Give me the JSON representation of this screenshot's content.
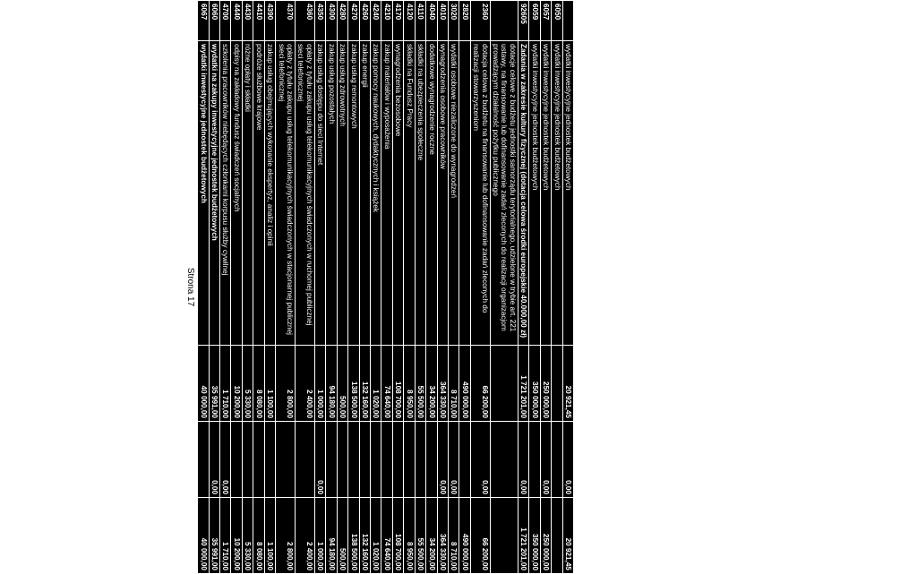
{
  "page_label": "Strona 17",
  "rows": [
    {
      "code": "",
      "desc": "wydatki inwestycyjne jednostek budżetowych",
      "c1": "20 921,45",
      "c2": "0,00",
      "c3": "20 921,45"
    },
    {
      "code": "6050",
      "desc": "wydatki inwestycyjne jednostek budżetowych",
      "c1": "",
      "c2": "",
      "c3": ""
    },
    {
      "code": "6057",
      "desc": "wydatki inwestycyjne jednostek budżetowych",
      "c1": "250 000,00",
      "c2": "0,00",
      "c3": "250 000,00"
    },
    {
      "code": "6059",
      "desc": "wydatki inwestycyjne jednostek budżetowych",
      "c1": "350 000,00",
      "c2": "",
      "c3": "350 000,00"
    },
    {
      "code": "92605",
      "desc": "Zadania w zakresie kultury fizycznej (dotacja celowa środki europejskie 40.000,00 zł)",
      "c1": "1 721 201,00",
      "c2": "0,00",
      "c3": "1 721 201,00",
      "bold": true
    },
    {
      "code": "",
      "desc": "dotacje celowe z budżetu jednostki samorządu terytorialnego, udzielone w trybie art. 221 ustawy, na finansowanie lub dofinansowanie zadań zleconych do realizacji organizacjom prowadzącym działalność pożytku publicznego",
      "c1": "",
      "c2": "",
      "c3": ""
    },
    {
      "code": "2360",
      "desc": "dotacja celowa z budżetu na finansowanie lub dofinansowanie zadań zleconych do realizacji stowarzyszeniom",
      "c1": "66 200,00",
      "c2": "0,00",
      "c3": "66 200,00"
    },
    {
      "code": "2820",
      "desc": "",
      "c1": "490 000,00",
      "c2": "",
      "c3": "490 000,00"
    },
    {
      "code": "3020",
      "desc": "wydatki osobowe niezaliczone do wynagrodzeń",
      "c1": "8 710,00",
      "c2": "0,00",
      "c3": "8 710,00"
    },
    {
      "code": "4010",
      "desc": "wynagrodzenia osobowe pracowników",
      "c1": "364 330,00",
      "c2": "0,00",
      "c3": "364 330,00"
    },
    {
      "code": "4040",
      "desc": "dodatkowe wynagrodzenie roczne",
      "c1": "34 200,00",
      "c2": "",
      "c3": "34 200,00"
    },
    {
      "code": "4110",
      "desc": "składki na ubezpieczenia społeczne",
      "c1": "55 500,00",
      "c2": "",
      "c3": "55 500,00"
    },
    {
      "code": "4120",
      "desc": "składki na Fundusz Pracy",
      "c1": "8 950,00",
      "c2": "",
      "c3": "8 950,00"
    },
    {
      "code": "4170",
      "desc": "wynagrodzenia bezosobowe",
      "c1": "108 700,00",
      "c2": "",
      "c3": "108 700,00"
    },
    {
      "code": "4210",
      "desc": "zakup materiałów i wyposażenia",
      "c1": "74 640,00",
      "c2": "",
      "c3": "74 640,00"
    },
    {
      "code": "4240",
      "desc": "zakup pomocy naukowych, dydaktycznych i książek",
      "c1": "1 020,00",
      "c2": "",
      "c3": "1 020,00"
    },
    {
      "code": "4260",
      "desc": "zakup energii",
      "c1": "132 160,00",
      "c2": "",
      "c3": "132 160,00"
    },
    {
      "code": "4270",
      "desc": "zakup usług remontowych",
      "c1": "138 500,00",
      "c2": "",
      "c3": "138 500,00"
    },
    {
      "code": "4280",
      "desc": "zakup usług zdrowotnych",
      "c1": "500,00",
      "c2": "",
      "c3": "500,00"
    },
    {
      "code": "4300",
      "desc": "zakup usług pozostałych",
      "c1": "94 180,00",
      "c2": "",
      "c3": "94 180,00"
    },
    {
      "code": "4350",
      "desc": "zakup usług dostępu do sieci Internet",
      "c1": "1 000,00",
      "c2": "0,00",
      "c3": "1 000,00"
    },
    {
      "code": "4360",
      "desc": "opłaty z tytułu zakupu usług telekomunikacyjnych świadczonych w ruchomej publicznej sieci telefonicznej",
      "c1": "2 400,00",
      "c2": "",
      "c3": "2 400,00"
    },
    {
      "code": "4370",
      "desc": "opłaty z tytułu zakupu usług telekomunikacyjnych świadczonych w stacjonarnej publicznej sieci telefonicznej",
      "c1": "2 800,00",
      "c2": "",
      "c3": "2 800,00"
    },
    {
      "code": "4390",
      "desc": "zakup usług obejmujących wykonanie ekspertyz, analiz i opinii",
      "c1": "1 100,00",
      "c2": "",
      "c3": "1 100,00"
    },
    {
      "code": "4410",
      "desc": "podróże służbowe krajowe",
      "c1": "8 080,00",
      "c2": "",
      "c3": "8 080,00"
    },
    {
      "code": "4430",
      "desc": "różne opłaty i składki",
      "c1": "5 330,00",
      "c2": "",
      "c3": "5 330,00"
    },
    {
      "code": "4440",
      "desc": "odpisy na zakładowy fundusz świadczeń socjalnych",
      "c1": "10 200,00",
      "c2": "",
      "c3": "10 200,00"
    },
    {
      "code": "4700",
      "desc": "szkolenia pracowników niebędących członkami korpusu służby cywilnej",
      "c1": "1 710,00",
      "c2": "0,00",
      "c3": "1 710,00"
    },
    {
      "code": "6060",
      "desc": "wydatki na zakupy inwestycyjne jednostek budżetowych",
      "c1": "35 991,00",
      "c2": "0,00",
      "c3": "35 991,00",
      "bold": true
    },
    {
      "code": "6067",
      "desc": "wydatki inwestycyjne jednostek budżetowych",
      "c1": "40 000,00",
      "c2": "",
      "c3": "40 000,00",
      "bold": true
    }
  ]
}
